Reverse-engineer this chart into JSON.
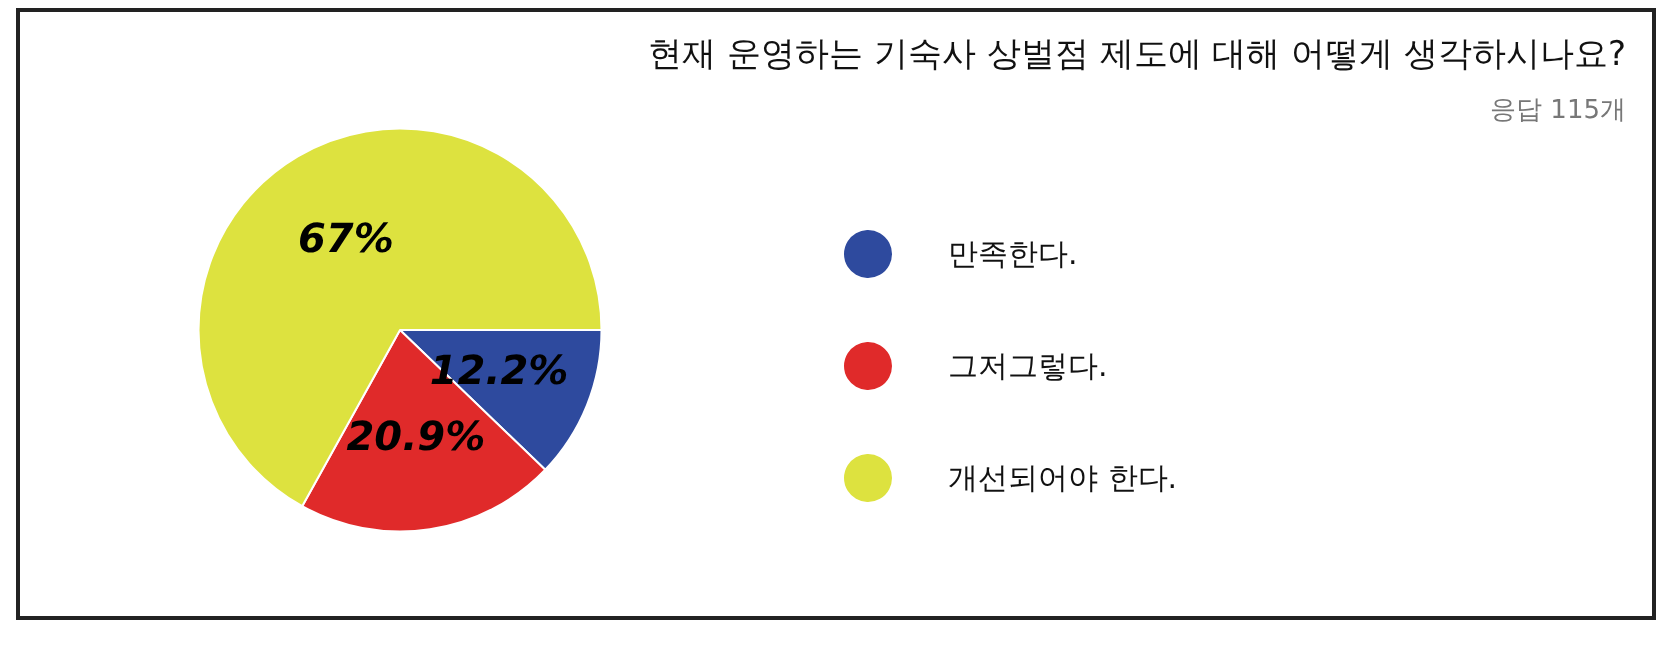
{
  "chart_data": {
    "type": "pie",
    "title": "현재 운영하는 기숙사 상벌점 제도에 대해 어떻게 생각하시나요?",
    "subtitle": "응답 115개",
    "categories": [
      "만족한다.",
      "그저그렇다.",
      "개선되어야 한다."
    ],
    "values": [
      12.2,
      20.9,
      67
    ],
    "colors": [
      "#2e4a9e",
      "#e02a2a",
      "#dde23f"
    ],
    "value_labels": [
      "12.2%",
      "20.9%",
      "67%"
    ],
    "legend": "right"
  }
}
